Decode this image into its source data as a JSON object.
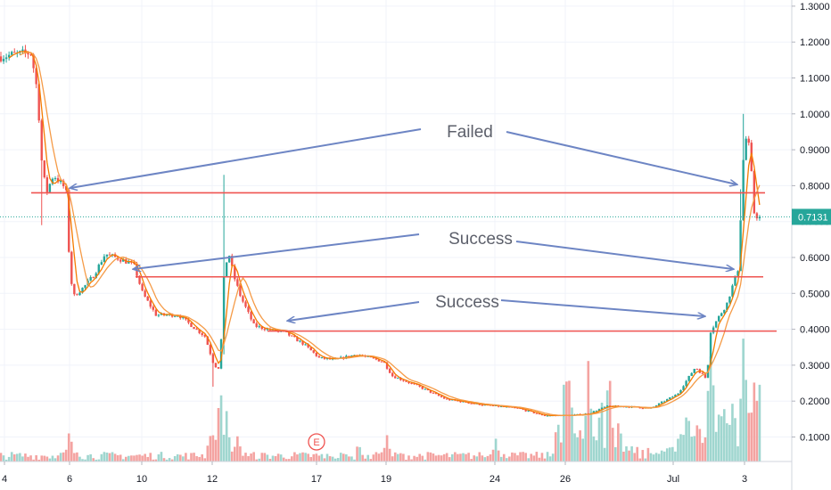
{
  "chart_data": {
    "type": "candlestick",
    "y_axis": {
      "position": "right",
      "ticks": [
        "0.1000",
        "0.2000",
        "0.3000",
        "0.4000",
        "0.5000",
        "0.6000",
        "0.7000",
        "0.8000",
        "0.9000",
        "1.0000",
        "1.1000",
        "1.2000",
        "1.3000"
      ],
      "ylim": [
        0.03,
        1.3
      ]
    },
    "x_axis": {
      "ticks": [
        "4",
        "6",
        "10",
        "12",
        "17",
        "19",
        "24",
        "26",
        "Jul",
        "3"
      ]
    },
    "current_price": {
      "label": "0.7131",
      "value": 0.7131,
      "color": "#26a69a"
    },
    "colors": {
      "up": "#26a69a",
      "down": "#ef5350",
      "ma_fast": "#f57c00",
      "ma_slow": "#f59b47",
      "support_line": "#ef5350",
      "arrow": "#6d85c4",
      "volume_up": "#9fd6cf",
      "volume_down": "#f4a3a1"
    },
    "horizontal_lines": [
      {
        "price": 0.78
      },
      {
        "price": 0.546
      },
      {
        "price": 0.395
      }
    ],
    "annotations": [
      {
        "text": "Failed"
      },
      {
        "text": "Success"
      },
      {
        "text": "Success"
      }
    ],
    "earnings_marker": {
      "label": "E"
    },
    "price_path_keypoints": [
      {
        "x": 0,
        "y": 1.16
      },
      {
        "x": 35,
        "y": 1.17
      },
      {
        "x": 42,
        "y": 1.06
      },
      {
        "x": 47,
        "y": 0.86
      },
      {
        "x": 52,
        "y": 0.78
      },
      {
        "x": 60,
        "y": 0.83
      },
      {
        "x": 74,
        "y": 0.79
      },
      {
        "x": 78,
        "y": 0.58
      },
      {
        "x": 82,
        "y": 0.49
      },
      {
        "x": 95,
        "y": 0.52
      },
      {
        "x": 105,
        "y": 0.55
      },
      {
        "x": 118,
        "y": 0.61
      },
      {
        "x": 130,
        "y": 0.6
      },
      {
        "x": 150,
        "y": 0.58
      },
      {
        "x": 160,
        "y": 0.5
      },
      {
        "x": 175,
        "y": 0.44
      },
      {
        "x": 200,
        "y": 0.44
      },
      {
        "x": 215,
        "y": 0.41
      },
      {
        "x": 230,
        "y": 0.38
      },
      {
        "x": 240,
        "y": 0.3
      },
      {
        "x": 247,
        "y": 0.29
      },
      {
        "x": 250,
        "y": 0.52
      },
      {
        "x": 256,
        "y": 0.62
      },
      {
        "x": 262,
        "y": 0.55
      },
      {
        "x": 270,
        "y": 0.49
      },
      {
        "x": 285,
        "y": 0.41
      },
      {
        "x": 300,
        "y": 0.4
      },
      {
        "x": 320,
        "y": 0.39
      },
      {
        "x": 340,
        "y": 0.36
      },
      {
        "x": 358,
        "y": 0.32
      },
      {
        "x": 375,
        "y": 0.315
      },
      {
        "x": 400,
        "y": 0.33
      },
      {
        "x": 430,
        "y": 0.31
      },
      {
        "x": 440,
        "y": 0.27
      },
      {
        "x": 470,
        "y": 0.24
      },
      {
        "x": 500,
        "y": 0.205
      },
      {
        "x": 540,
        "y": 0.19
      },
      {
        "x": 580,
        "y": 0.18
      },
      {
        "x": 610,
        "y": 0.16
      },
      {
        "x": 640,
        "y": 0.16
      },
      {
        "x": 660,
        "y": 0.165
      },
      {
        "x": 680,
        "y": 0.185
      },
      {
        "x": 700,
        "y": 0.185
      },
      {
        "x": 730,
        "y": 0.18
      },
      {
        "x": 760,
        "y": 0.22
      },
      {
        "x": 780,
        "y": 0.295
      },
      {
        "x": 793,
        "y": 0.26
      },
      {
        "x": 796,
        "y": 0.39
      },
      {
        "x": 805,
        "y": 0.43
      },
      {
        "x": 815,
        "y": 0.47
      },
      {
        "x": 828,
        "y": 0.57
      },
      {
        "x": 834,
        "y": 0.89
      },
      {
        "x": 838,
        "y": 0.95
      },
      {
        "x": 842,
        "y": 0.86
      },
      {
        "x": 846,
        "y": 0.72
      },
      {
        "x": 852,
        "y": 0.71
      }
    ]
  }
}
